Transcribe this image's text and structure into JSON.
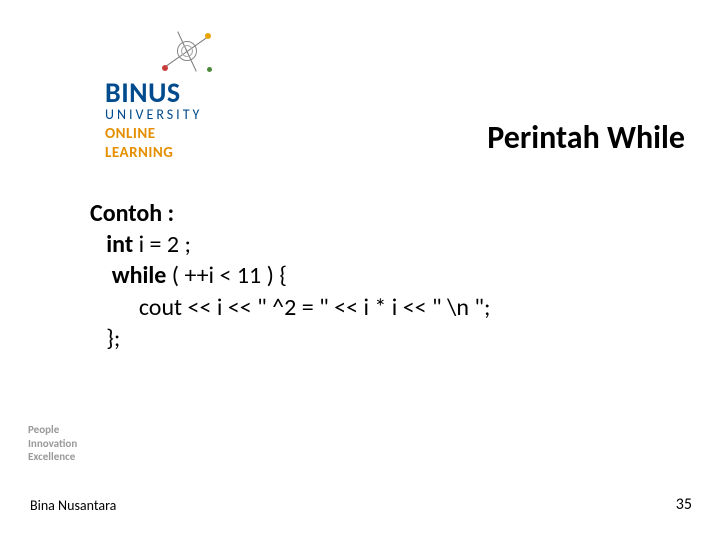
{
  "logo": {
    "brand": "BINUS",
    "sub": "UNIVERSITY",
    "online1": "ONLINE",
    "online2": "LEARNING",
    "brand_color": "#004b8d",
    "online_color": "#e58f00"
  },
  "title": "Perintah While",
  "code": {
    "line1_label": "Contoh :",
    "line2_kw": "int",
    "line2_rest": " i = 2 ;",
    "line3_kw": "while",
    "line3_rest": " ( ++i < 11 ) {",
    "line4": "cout << i << \" ^2 = \" << i * i << \" \\n \";",
    "line5": "};"
  },
  "tagline": {
    "l1": "People",
    "l2": "Innovation",
    "l3": "Excellence"
  },
  "footer": "Bina Nusantara",
  "page_number": "35",
  "fonts": {
    "title_size": 32,
    "body_size": 24
  },
  "colors": {
    "text": "#000000",
    "bg": "#ffffff",
    "tagline": "#9a9a9a"
  }
}
